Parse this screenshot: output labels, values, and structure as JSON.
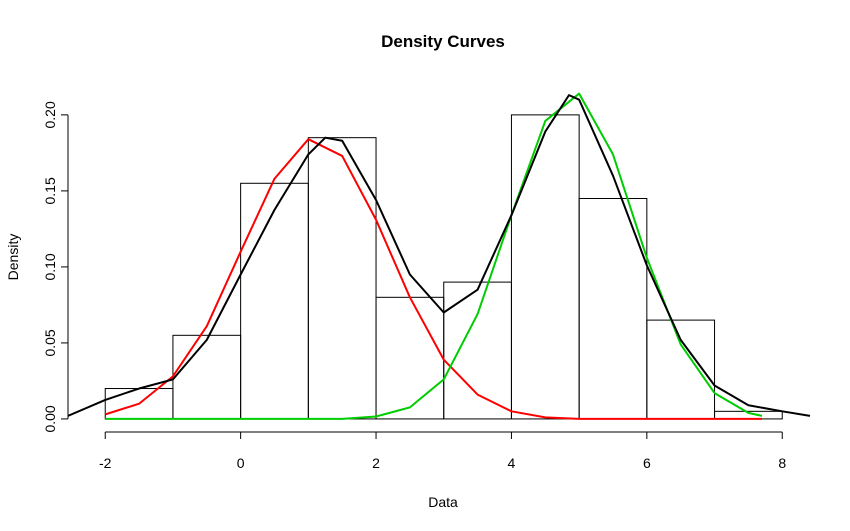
{
  "chart_data": {
    "type": "histogram",
    "title": "Density Curves",
    "x_label": "Data",
    "y_label": "Density",
    "bins": [
      -2,
      -1,
      0,
      1,
      2,
      3,
      4,
      5,
      6,
      7,
      8
    ],
    "values": [
      0.02,
      0.055,
      0.155,
      0.185,
      0.08,
      0.09,
      0.2,
      0.145,
      0.065,
      0.005
    ],
    "color": "#000000",
    "xlim": [
      -2.55,
      8.41
    ],
    "ylim": [
      -0.0086,
      0.2236
    ],
    "xticks": [
      -2,
      0,
      2,
      4,
      6,
      8
    ],
    "yticks": [
      {
        "value": 0,
        "label": "0.00"
      },
      {
        "value": 0.05,
        "label": "0.05"
      },
      {
        "value": 0.1,
        "label": "0.10"
      },
      {
        "value": 0.15,
        "label": "0.15"
      },
      {
        "value": 0.2,
        "label": "0.20"
      }
    ],
    "lines": [
      {
        "color": "#ff0000",
        "x": [
          -2,
          -1.5,
          -1,
          -0.5,
          0,
          0.5,
          1,
          1.5,
          2,
          2.5,
          3,
          3.5,
          4,
          4.5,
          5,
          5.5,
          6,
          6.5,
          7,
          7.5,
          7.7
        ],
        "values": [
          0.003,
          0.01,
          0.028,
          0.061,
          0.11,
          0.158,
          0.184,
          0.173,
          0.131,
          0.08,
          0.039,
          0.016,
          0.005,
          0.001,
          0,
          0,
          0,
          0,
          0,
          0,
          0
        ]
      },
      {
        "color": "#00cd00",
        "x": [
          -2,
          -1,
          0,
          1,
          1.5,
          2,
          2.5,
          3,
          3.5,
          4,
          4.5,
          5,
          5.5,
          6,
          6.5,
          7,
          7.5,
          7.7
        ],
        "values": [
          0,
          0,
          0,
          0,
          0,
          0.0016,
          0.0076,
          0.026,
          0.069,
          0.134,
          0.196,
          0.214,
          0.174,
          0.106,
          0.049,
          0.017,
          0.004,
          0.002
        ]
      },
      {
        "color": "#000000",
        "x": [
          -2.55,
          -2,
          -1.5,
          -1,
          -0.5,
          0,
          0.5,
          1,
          1.25,
          1.5,
          2,
          2.5,
          3,
          3.5,
          4,
          4.5,
          4.85,
          5,
          5.5,
          6,
          6.5,
          7,
          7.5,
          8,
          8.41
        ],
        "values": [
          0.002,
          0.0125,
          0.02,
          0.026,
          0.052,
          0.095,
          0.1375,
          0.174,
          0.185,
          0.183,
          0.144,
          0.095,
          0.07,
          0.085,
          0.134,
          0.189,
          0.213,
          0.21,
          0.16,
          0.101,
          0.052,
          0.022,
          0.009,
          0.005,
          0.002
        ]
      }
    ]
  }
}
